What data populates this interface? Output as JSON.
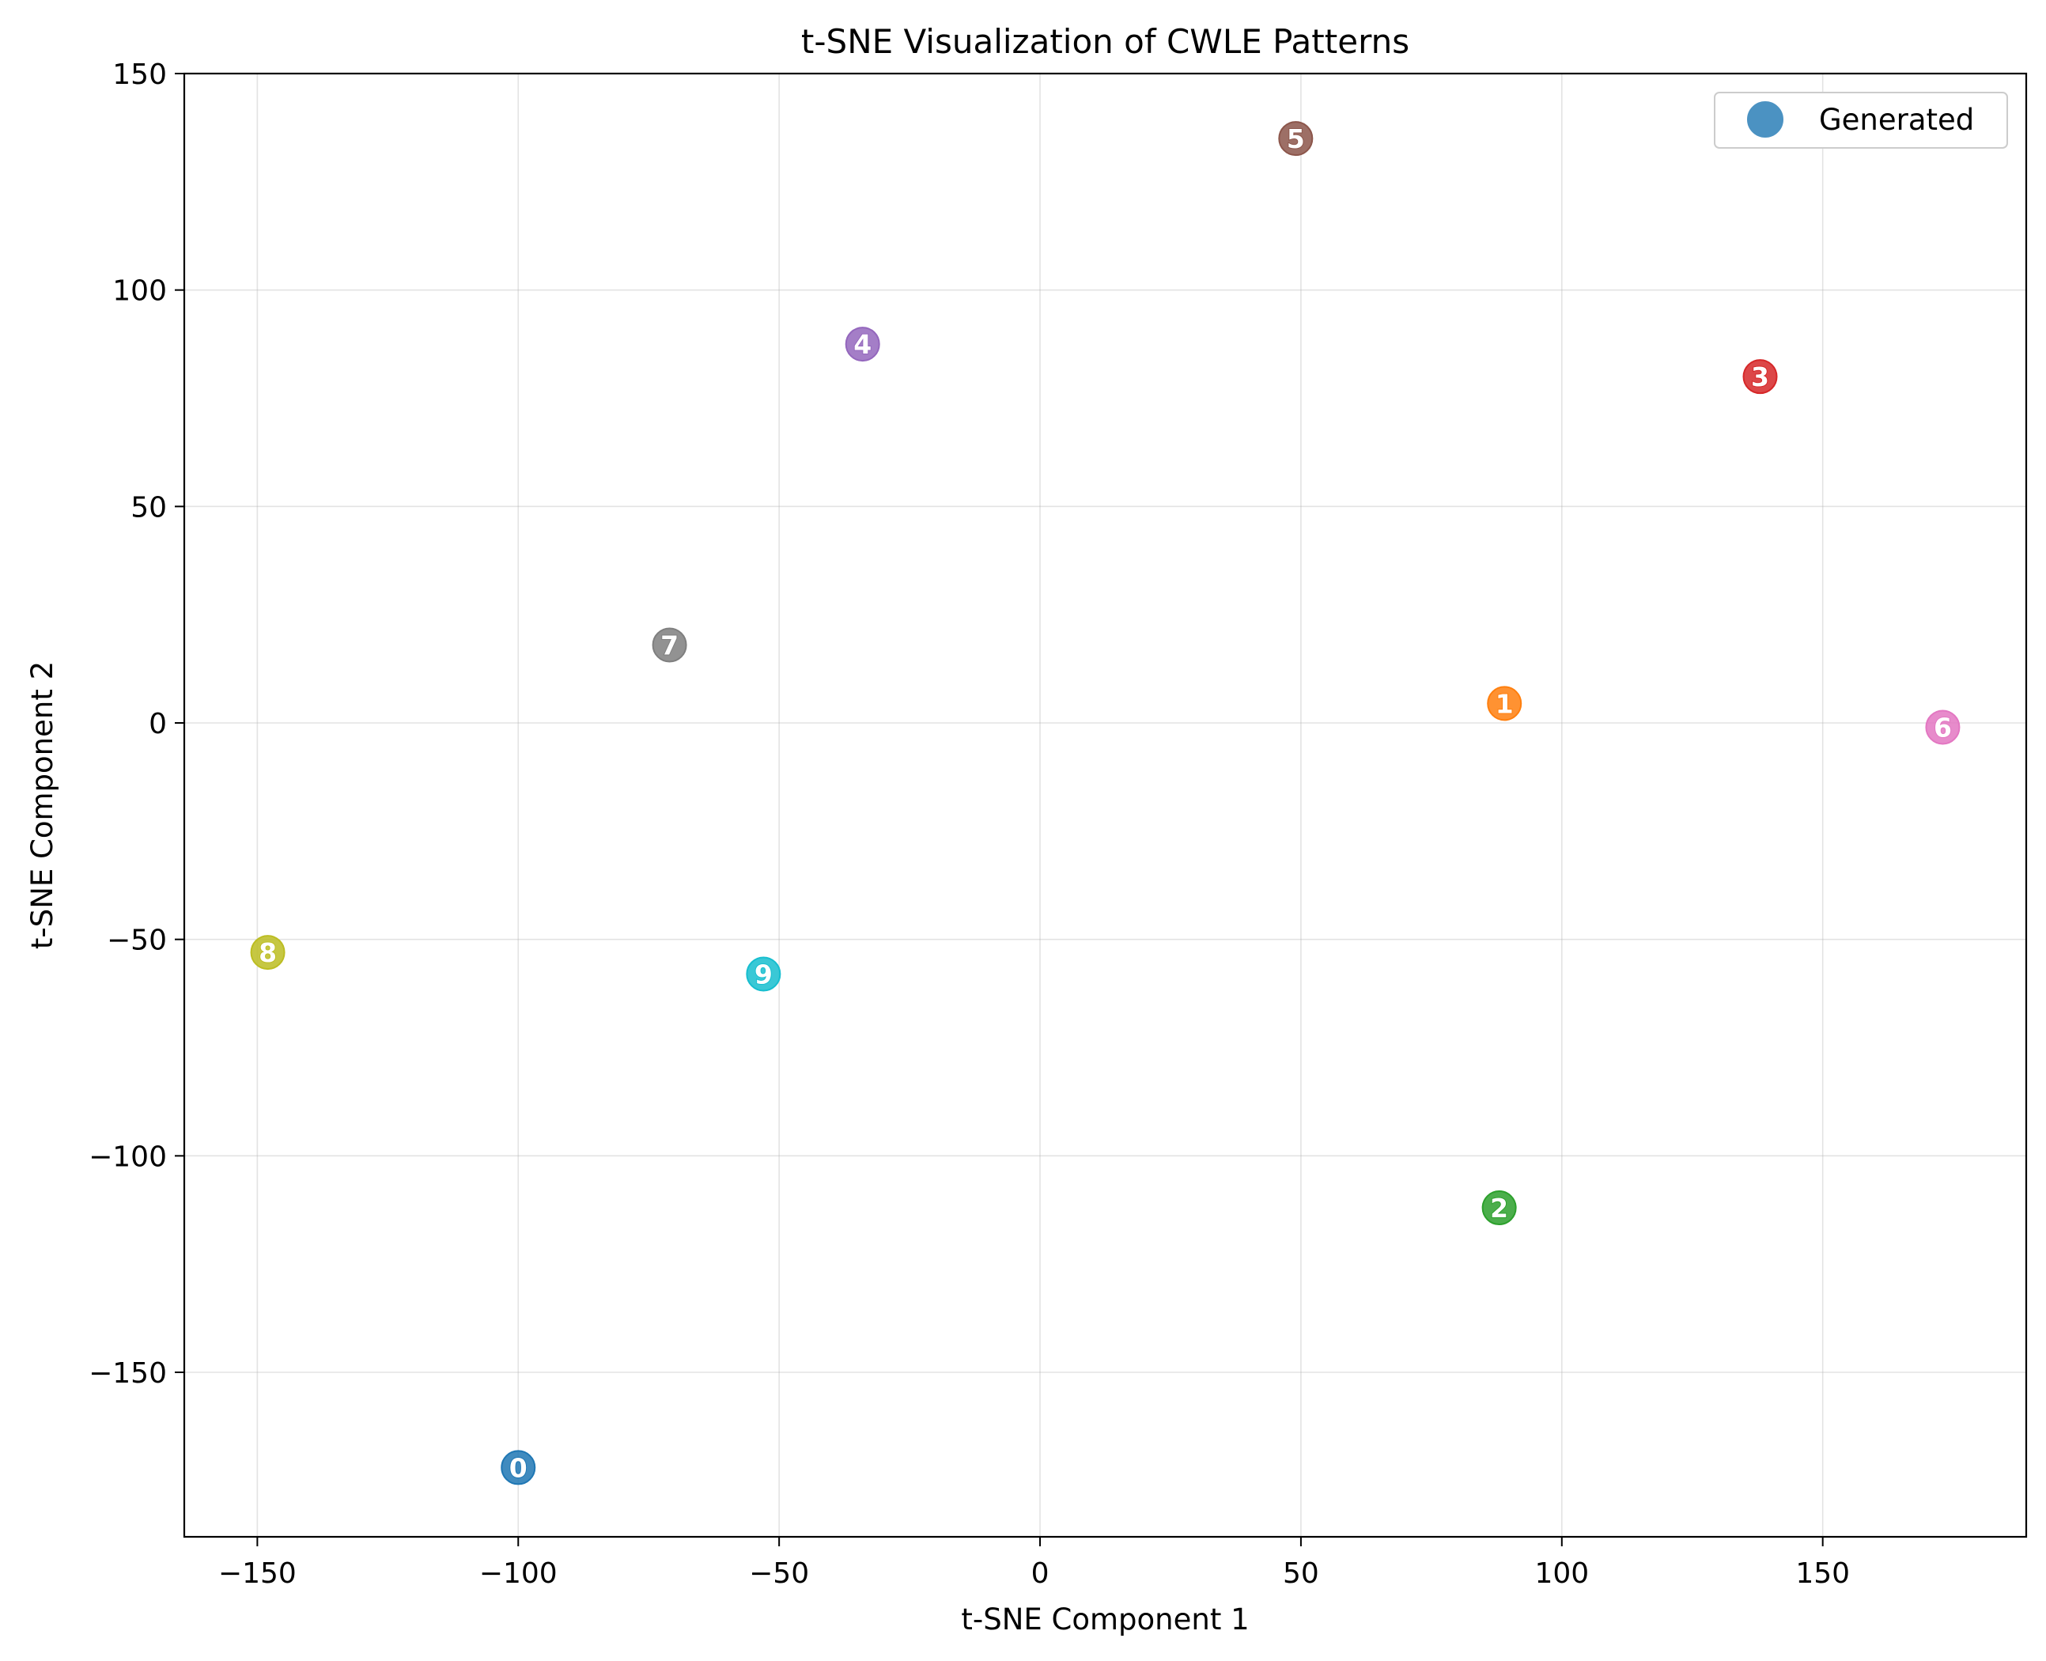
{
  "chart_data": {
    "type": "scatter",
    "title": "t-SNE Visualization of CWLE Patterns",
    "xlabel": "t-SNE Component 1",
    "ylabel": "t-SNE Component 2",
    "xlim": [
      -164,
      189
    ],
    "ylim": [
      -188,
      150
    ],
    "xticks": [
      -150,
      -100,
      -50,
      0,
      50,
      100,
      150
    ],
    "yticks": [
      -150,
      -100,
      -50,
      0,
      50,
      100,
      150
    ],
    "grid": true,
    "legend": {
      "placement": "top-right",
      "entries": [
        {
          "label": "Generated",
          "color": "#1f77b4"
        }
      ]
    },
    "points": [
      {
        "label": "0",
        "x": -100,
        "y": -172,
        "color": "#1f77b4"
      },
      {
        "label": "1",
        "x": 89,
        "y": 4.5,
        "color": "#ff7f0e"
      },
      {
        "label": "2",
        "x": 88,
        "y": -112,
        "color": "#2ca02c"
      },
      {
        "label": "3",
        "x": 138,
        "y": 80,
        "color": "#d62728"
      },
      {
        "label": "4",
        "x": -34,
        "y": 87.5,
        "color": "#9467bd"
      },
      {
        "label": "5",
        "x": 49,
        "y": 135,
        "color": "#8c564b"
      },
      {
        "label": "6",
        "x": 173,
        "y": -1,
        "color": "#e377c2"
      },
      {
        "label": "7",
        "x": -71,
        "y": 18,
        "color": "#7f7f7f"
      },
      {
        "label": "8",
        "x": -148,
        "y": -53,
        "color": "#bcbd22"
      },
      {
        "label": "9",
        "x": -53,
        "y": -58,
        "color": "#17becf"
      }
    ]
  }
}
